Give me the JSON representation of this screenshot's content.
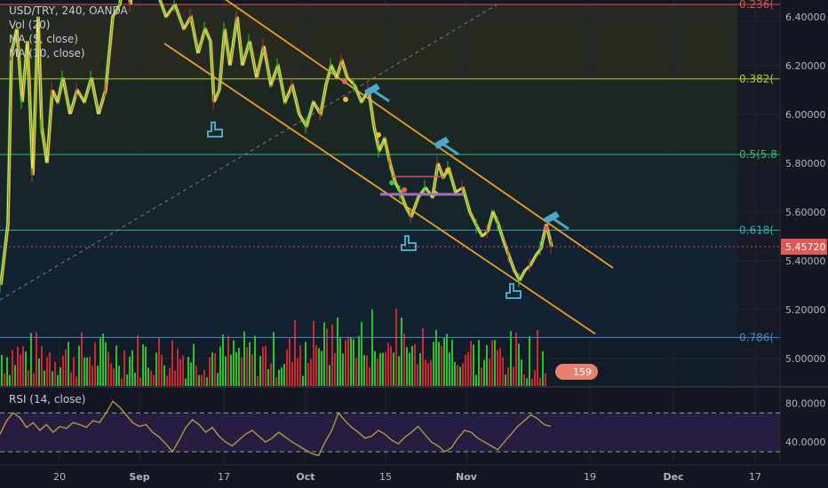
{
  "legend": {
    "symbol": "USD/TRY, 240, OANDA",
    "vol": "Vol (20)",
    "ma1": "MA (5, close)",
    "ma2": "MA (10, close)"
  },
  "rsi_label": "RSI (14, close)",
  "price_badge": "5.45720",
  "vol_badge": "159",
  "colors": {
    "background": "#131722",
    "up": "#26c526",
    "down": "#d0262f",
    "channel": "#f0a020",
    "price_line": "#e8e8a0",
    "ma_fast": "#f0c020",
    "ma_slow": "#2da52d",
    "rsi": "#b09a3c",
    "badge": "#e05a5a",
    "marker": "#4aa8c8"
  },
  "chart_data": {
    "type": "line",
    "title": "USD/TRY, 240, OANDA",
    "x_ticks": [
      "20",
      "Sep",
      "17",
      "Oct",
      "15",
      "Nov",
      "19",
      "Dec",
      "17"
    ],
    "y_ticks": [
      "6.40000",
      "6.20000",
      "6.00000",
      "5.80000",
      "5.60000",
      "5.40000",
      "5.20000",
      "5.00000"
    ],
    "ylim": [
      4.9,
      6.45
    ],
    "last_price": 5.4572,
    "fib_levels": [
      {
        "label": "0.236(",
        "price": 6.45,
        "color": "#e05050"
      },
      {
        "label": "0.382(",
        "price": 6.145,
        "color": "#b8c83a"
      },
      {
        "label": "0.5(5.8",
        "price": 5.835,
        "color": "#3cb46a"
      },
      {
        "label": "0.618(",
        "price": 5.525,
        "color": "#30b0a0"
      },
      {
        "label": "0.786(",
        "price": 5.085,
        "color": "#3a8ec8"
      }
    ],
    "price_series": {
      "name": "USD/TRY",
      "points": [
        [
          0,
          5.3
        ],
        [
          8,
          5.55
        ],
        [
          12,
          6.25
        ],
        [
          18,
          6.35
        ],
        [
          24,
          6.05
        ],
        [
          30,
          6.3
        ],
        [
          36,
          5.75
        ],
        [
          42,
          6.4
        ],
        [
          46,
          5.95
        ],
        [
          52,
          5.8
        ],
        [
          58,
          6.1
        ],
        [
          64,
          6.05
        ],
        [
          70,
          6.15
        ],
        [
          78,
          6.0
        ],
        [
          86,
          6.1
        ],
        [
          94,
          6.05
        ],
        [
          102,
          6.15
        ],
        [
          110,
          6.0
        ],
        [
          118,
          6.1
        ],
        [
          126,
          6.4
        ],
        [
          134,
          6.45
        ],
        [
          140,
          6.6
        ],
        [
          146,
          6.45
        ],
        [
          152,
          6.7
        ],
        [
          160,
          6.5
        ],
        [
          168,
          6.55
        ],
        [
          176,
          6.5
        ],
        [
          186,
          6.4
        ],
        [
          196,
          6.45
        ],
        [
          206,
          6.35
        ],
        [
          214,
          6.4
        ],
        [
          222,
          6.25
        ],
        [
          230,
          6.35
        ],
        [
          236,
          6.3
        ],
        [
          240,
          6.05
        ],
        [
          246,
          6.1
        ],
        [
          252,
          6.35
        ],
        [
          258,
          6.2
        ],
        [
          266,
          6.4
        ],
        [
          272,
          6.2
        ],
        [
          280,
          6.3
        ],
        [
          288,
          6.15
        ],
        [
          296,
          6.28
        ],
        [
          304,
          6.12
        ],
        [
          312,
          6.2
        ],
        [
          320,
          6.05
        ],
        [
          328,
          6.12
        ],
        [
          336,
          6.0
        ],
        [
          344,
          5.95
        ],
        [
          352,
          6.05
        ],
        [
          360,
          6.0
        ],
        [
          366,
          6.12
        ],
        [
          372,
          6.2
        ],
        [
          378,
          6.15
        ],
        [
          384,
          6.22
        ],
        [
          390,
          6.15
        ],
        [
          398,
          6.12
        ],
        [
          406,
          6.05
        ],
        [
          414,
          6.1
        ],
        [
          420,
          5.95
        ],
        [
          426,
          5.85
        ],
        [
          432,
          5.9
        ],
        [
          438,
          5.8
        ],
        [
          444,
          5.72
        ],
        [
          450,
          5.68
        ],
        [
          456,
          5.62
        ],
        [
          462,
          5.58
        ],
        [
          470,
          5.66
        ],
        [
          478,
          5.7
        ],
        [
          486,
          5.66
        ],
        [
          492,
          5.8
        ],
        [
          498,
          5.74
        ],
        [
          504,
          5.78
        ],
        [
          512,
          5.68
        ],
        [
          520,
          5.7
        ],
        [
          528,
          5.6
        ],
        [
          536,
          5.54
        ],
        [
          542,
          5.5
        ],
        [
          548,
          5.52
        ],
        [
          554,
          5.6
        ],
        [
          560,
          5.55
        ],
        [
          566,
          5.48
        ],
        [
          572,
          5.42
        ],
        [
          578,
          5.36
        ],
        [
          584,
          5.32
        ],
        [
          590,
          5.36
        ],
        [
          596,
          5.38
        ],
        [
          602,
          5.42
        ],
        [
          608,
          5.45
        ],
        [
          614,
          5.55
        ],
        [
          620,
          5.457
        ]
      ]
    },
    "channel": {
      "upper": {
        "from": [
          250,
          6.48
        ],
        "to": [
          690,
          5.37
        ]
      },
      "lower": {
        "from": [
          185,
          6.29
        ],
        "to": [
          670,
          5.1
        ]
      }
    },
    "rsi": {
      "ylim": [
        20,
        95
      ],
      "y_ticks": [
        "80.0000",
        "40.0000"
      ],
      "overbought": 70,
      "oversold": 30,
      "values": [
        48,
        62,
        70,
        65,
        55,
        60,
        52,
        58,
        50,
        56,
        54,
        60,
        58,
        55,
        62,
        60,
        70,
        82,
        76,
        68,
        60,
        56,
        58,
        50,
        45,
        38,
        30,
        42,
        55,
        63,
        58,
        50,
        55,
        46,
        40,
        36,
        42,
        48,
        52,
        46,
        40,
        44,
        50,
        45,
        40,
        36,
        32,
        28,
        26,
        40,
        52,
        70,
        62,
        55,
        50,
        44,
        46,
        52,
        48,
        42,
        38,
        45,
        50,
        56,
        48,
        40,
        36,
        30,
        34,
        44,
        52,
        50,
        44,
        40,
        36,
        32,
        40,
        48,
        56,
        62,
        68,
        64,
        58,
        56
      ]
    }
  }
}
